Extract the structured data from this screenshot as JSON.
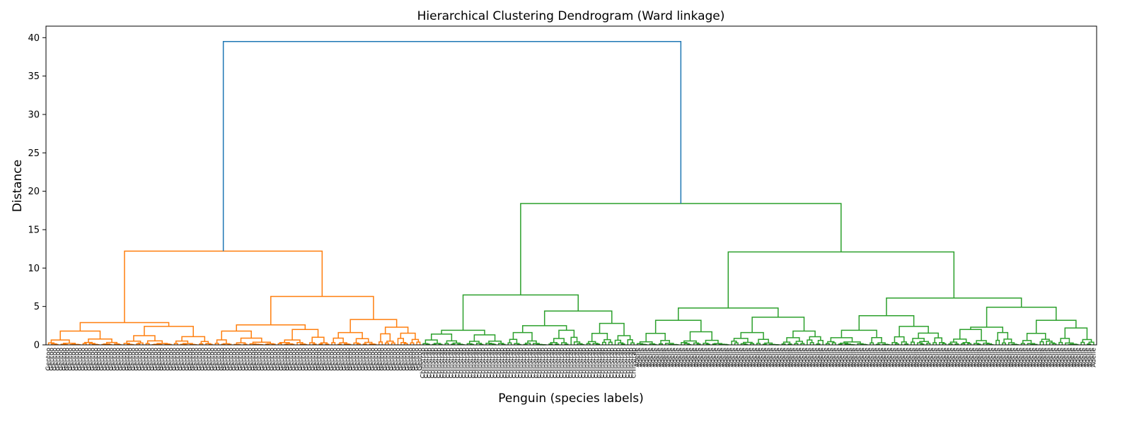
{
  "chart_data": {
    "type": "dendrogram",
    "title": "Hierarchical Clustering Dendrogram (Ward linkage)",
    "xlabel": "Penguin (species labels)",
    "ylabel": "Distance",
    "ylim": [
      0,
      41.5
    ],
    "yticks": [
      0,
      5,
      10,
      15,
      20,
      25,
      30,
      35,
      40
    ],
    "grid": false,
    "leaf_count": 333,
    "colors": {
      "above_threshold": "#1f77b4",
      "cluster_1": "#ff7f0e",
      "cluster_2": "#2ca02c"
    },
    "leaf_groups": [
      {
        "label": "Gentoo",
        "count": 119,
        "color_key": "cluster_1"
      },
      {
        "label": "Chinstrap",
        "count": 68,
        "color_key": "cluster_2"
      },
      {
        "label": "Adelie",
        "count": 146,
        "color_key": "cluster_2"
      }
    ],
    "merges": [
      {
        "name": "root",
        "height": 39.5,
        "color_key": "above_threshold",
        "left": "gentoo-cluster",
        "right": "green-cluster"
      },
      {
        "name": "gentoo-cluster",
        "height": 12.2,
        "color_key": "cluster_1",
        "left": "gentoo-a",
        "right": "gentoo-b"
      },
      {
        "name": "gentoo-a",
        "height": 2.9,
        "color_key": "cluster_1"
      },
      {
        "name": "gentoo-b",
        "height": 6.3,
        "color_key": "cluster_1"
      },
      {
        "name": "green-cluster",
        "height": 18.4,
        "color_key": "cluster_2",
        "left": "chinstrap-group",
        "right": "adelie-group"
      },
      {
        "name": "chinstrap-group",
        "height": 6.5,
        "color_key": "cluster_2",
        "left": "chinstrap-a",
        "right": "chinstrap-b"
      },
      {
        "name": "chinstrap-a",
        "height": 1.9,
        "color_key": "cluster_2"
      },
      {
        "name": "chinstrap-b",
        "height": 4.4,
        "color_key": "cluster_2"
      },
      {
        "name": "adelie-group",
        "height": 12.1,
        "color_key": "cluster_2",
        "left": "adelie-a",
        "right": "adelie-b"
      },
      {
        "name": "adelie-a",
        "height": 4.8,
        "color_key": "cluster_2"
      },
      {
        "name": "adelie-b",
        "height": 6.1,
        "color_key": "cluster_2"
      },
      {
        "name": "adelie-b1",
        "height": 3.8,
        "color_key": "cluster_2"
      },
      {
        "name": "adelie-b2",
        "height": 4.9,
        "color_key": "cluster_2"
      }
    ]
  }
}
